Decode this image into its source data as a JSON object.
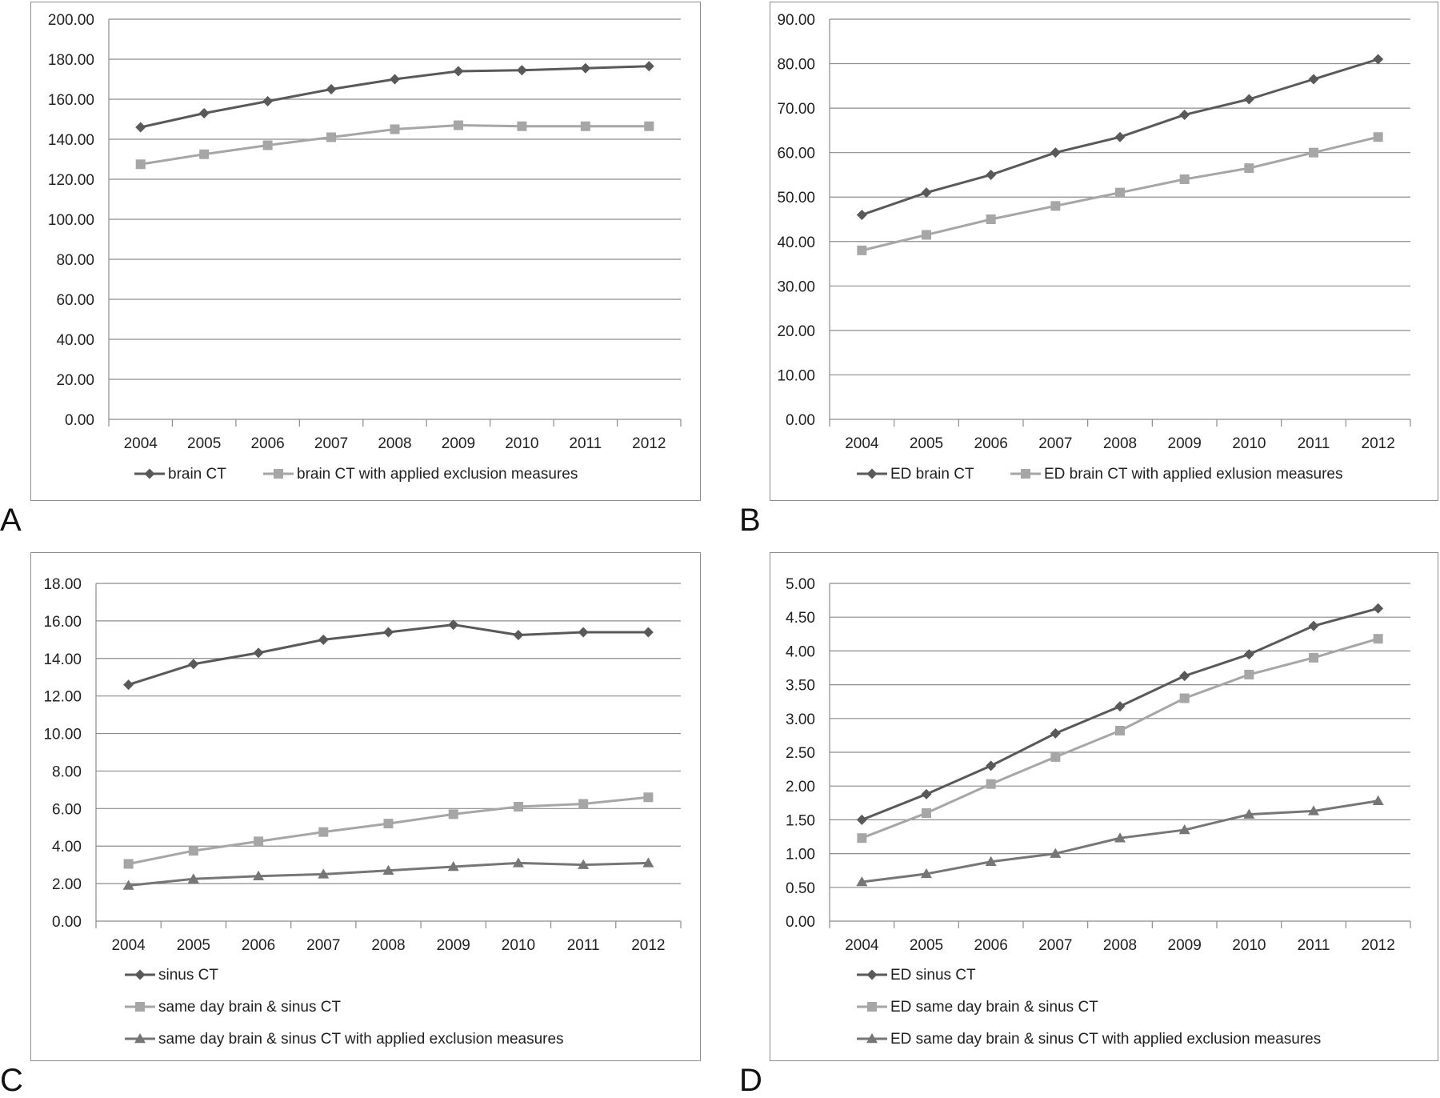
{
  "chart_data": [
    {
      "panel": "A",
      "type": "line",
      "categories": [
        "2004",
        "2005",
        "2006",
        "2007",
        "2008",
        "2009",
        "2010",
        "2011",
        "2012"
      ],
      "ylim": [
        0,
        200
      ],
      "ytick_step": 20,
      "ytick_decimals": 2,
      "legend_position": "bottom-inline",
      "grid": true,
      "series": [
        {
          "name": "brain CT",
          "marker": "diamond",
          "color": "#595959",
          "values": [
            146,
            153,
            159,
            165,
            170,
            174,
            174.5,
            175.5,
            176.5
          ]
        },
        {
          "name": "brain CT with applied exclusion measures",
          "marker": "square",
          "color": "#a6a6a6",
          "values": [
            127.5,
            132.5,
            137,
            141,
            145,
            147,
            146.5,
            146.5,
            146.5
          ]
        }
      ]
    },
    {
      "panel": "B",
      "type": "line",
      "categories": [
        "2004",
        "2005",
        "2006",
        "2007",
        "2008",
        "2009",
        "2010",
        "2011",
        "2012"
      ],
      "ylim": [
        0,
        90
      ],
      "ytick_step": 10,
      "ytick_decimals": 2,
      "legend_position": "bottom-inline",
      "grid": true,
      "series": [
        {
          "name": "ED brain CT",
          "marker": "diamond",
          "color": "#595959",
          "values": [
            46,
            51,
            55,
            60,
            63.5,
            68.5,
            72,
            76.5,
            81
          ]
        },
        {
          "name": "ED brain CT with applied exlusion measures",
          "marker": "square",
          "color": "#a6a6a6",
          "values": [
            38,
            41.5,
            45,
            48,
            51,
            54,
            56.5,
            60,
            63.5
          ]
        }
      ]
    },
    {
      "panel": "C",
      "type": "line",
      "categories": [
        "2004",
        "2005",
        "2006",
        "2007",
        "2008",
        "2009",
        "2010",
        "2011",
        "2012"
      ],
      "ylim": [
        0,
        18
      ],
      "ytick_step": 2,
      "ytick_decimals": 2,
      "legend_position": "bottom-stacked",
      "grid": true,
      "series": [
        {
          "name": "sinus CT",
          "marker": "diamond",
          "color": "#595959",
          "values": [
            12.6,
            13.7,
            14.3,
            15.0,
            15.4,
            15.8,
            15.25,
            15.4,
            15.4
          ]
        },
        {
          "name": "same day brain & sinus CT",
          "marker": "square",
          "color": "#a6a6a6",
          "values": [
            3.05,
            3.75,
            4.25,
            4.75,
            5.2,
            5.7,
            6.1,
            6.25,
            6.6
          ]
        },
        {
          "name": "same day brain & sinus CT with applied exclusion measures",
          "marker": "triangle",
          "color": "#767676",
          "values": [
            1.9,
            2.25,
            2.4,
            2.5,
            2.7,
            2.9,
            3.1,
            3.0,
            3.1
          ]
        }
      ]
    },
    {
      "panel": "D",
      "type": "line",
      "categories": [
        "2004",
        "2005",
        "2006",
        "2007",
        "2008",
        "2009",
        "2010",
        "2011",
        "2012"
      ],
      "ylim": [
        0,
        5
      ],
      "ytick_step": 0.5,
      "ytick_decimals": 2,
      "legend_position": "bottom-stacked",
      "grid": true,
      "series": [
        {
          "name": "ED sinus CT",
          "marker": "diamond",
          "color": "#595959",
          "values": [
            1.5,
            1.88,
            2.3,
            2.78,
            3.18,
            3.63,
            3.95,
            4.37,
            4.63
          ]
        },
        {
          "name": "ED same day brain & sinus CT",
          "marker": "square",
          "color": "#a6a6a6",
          "values": [
            1.23,
            1.6,
            2.03,
            2.43,
            2.82,
            3.3,
            3.65,
            3.9,
            4.18
          ]
        },
        {
          "name": "ED same day brain & sinus CT with applied exclusion measures",
          "marker": "triangle",
          "color": "#767676",
          "values": [
            0.58,
            0.7,
            0.88,
            1.0,
            1.23,
            1.35,
            1.58,
            1.63,
            1.78
          ]
        }
      ]
    }
  ]
}
